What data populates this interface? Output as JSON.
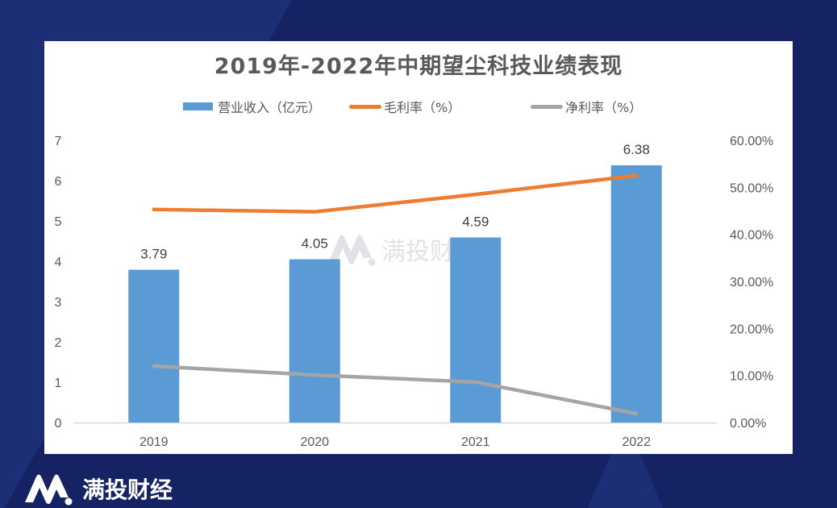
{
  "brand": {
    "name": "满投财经",
    "watermark": "满投财经",
    "colors": {
      "background": "#152264",
      "background_accent": "#1c2e75",
      "card": "#ffffff"
    }
  },
  "chart_data": {
    "type": "bar+line",
    "title": "2019年-2022年中期望尘科技业绩表现",
    "categories": [
      "2019",
      "2020",
      "2021",
      "2022"
    ],
    "legend_position": "top",
    "grid": false,
    "series": [
      {
        "name": "营业收入（亿元）",
        "type": "bar",
        "axis": "left",
        "color": "#5b9bd5",
        "values": [
          3.79,
          4.05,
          4.59,
          6.38
        ],
        "labels": [
          "3.79",
          "4.05",
          "4.59",
          "6.38"
        ]
      },
      {
        "name": "毛利率（%）",
        "type": "line",
        "axis": "right",
        "color": "#ed7d31",
        "values": [
          45.3,
          44.8,
          48.5,
          52.5
        ]
      },
      {
        "name": "净利率（%）",
        "type": "line",
        "axis": "right",
        "color": "#a5a5a5",
        "values": [
          12.0,
          10.1,
          8.6,
          1.9
        ]
      }
    ],
    "y_left": {
      "ylim": [
        0,
        7
      ],
      "ticks": [
        "0",
        "1",
        "2",
        "3",
        "4",
        "5",
        "6",
        "7"
      ]
    },
    "y_right": {
      "ylim": [
        0,
        60
      ],
      "ticks": [
        "0.00%",
        "10.00%",
        "20.00%",
        "30.00%",
        "40.00%",
        "50.00%",
        "60.00%"
      ]
    }
  }
}
